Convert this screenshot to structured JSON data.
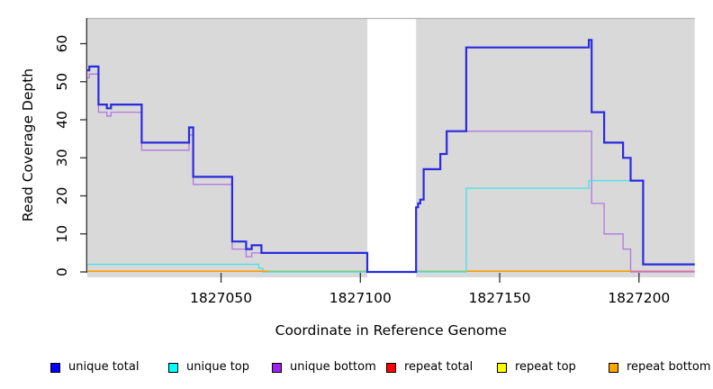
{
  "chart_data": {
    "type": "line",
    "step": true,
    "title": "",
    "xlabel": "Coordinate in Reference Genome",
    "ylabel": "Read Coverage Depth",
    "xlim": [
      1827002,
      1827220
    ],
    "ylim": [
      0,
      66.5
    ],
    "grid": false,
    "plot_background": "#d9d9d9",
    "axis_color": "#303030",
    "x_ticks": [
      1827050,
      1827100,
      1827150,
      1827200
    ],
    "x_tick_labels": [
      "1827050",
      "1827100",
      "1827150",
      "1827200"
    ],
    "y_ticks": [
      0,
      10,
      20,
      30,
      40,
      50,
      60
    ],
    "y_tick_labels": [
      "0",
      "10",
      "20",
      "30",
      "40",
      "50",
      "60"
    ],
    "gap_region": {
      "x_start": 1827102.5,
      "x_end": 1827120,
      "fill": "#ffffff"
    },
    "series": [
      {
        "name": "unique bottom",
        "color": "#b176e2",
        "width": 1.3,
        "points": [
          [
            1827002,
            51
          ],
          [
            1827002.7,
            52
          ],
          [
            1827006,
            42
          ],
          [
            1827009,
            41
          ],
          [
            1827010.5,
            42
          ],
          [
            1827021.5,
            32
          ],
          [
            1827038.5,
            36
          ],
          [
            1827040,
            23
          ],
          [
            1827054,
            6
          ],
          [
            1827059,
            4
          ],
          [
            1827061,
            5
          ],
          [
            1827064.5,
            5
          ],
          [
            1827102.5,
            0
          ],
          [
            1827120,
            17
          ],
          [
            1827120.7,
            18
          ],
          [
            1827121.5,
            19
          ],
          [
            1827122.7,
            27
          ],
          [
            1827128.7,
            31
          ],
          [
            1827131,
            37
          ],
          [
            1827183,
            18
          ],
          [
            1827187.5,
            10
          ],
          [
            1827194.3,
            6
          ],
          [
            1827197,
            0
          ],
          [
            1827220,
            0
          ]
        ]
      },
      {
        "name": "unique top",
        "color": "#4de2e6",
        "width": 1.4,
        "points": [
          [
            1827002,
            2
          ],
          [
            1827063.5,
            1
          ],
          [
            1827065,
            0
          ],
          [
            1827138,
            22
          ],
          [
            1827182,
            24
          ],
          [
            1827201.5,
            2
          ],
          [
            1827220,
            2
          ]
        ]
      },
      {
        "name": "unique total",
        "color": "#2a2ae0",
        "width": 2.2,
        "points": [
          [
            1827002,
            53
          ],
          [
            1827002.7,
            54
          ],
          [
            1827006,
            44
          ],
          [
            1827009,
            43
          ],
          [
            1827010.5,
            44
          ],
          [
            1827021.5,
            34
          ],
          [
            1827038.5,
            38
          ],
          [
            1827040,
            25
          ],
          [
            1827054,
            8
          ],
          [
            1827059,
            6
          ],
          [
            1827061,
            7
          ],
          [
            1827064.5,
            5
          ],
          [
            1827102.5,
            0
          ],
          [
            1827120,
            17
          ],
          [
            1827120.7,
            18
          ],
          [
            1827121.5,
            19
          ],
          [
            1827122.7,
            27
          ],
          [
            1827128.7,
            31
          ],
          [
            1827131,
            37
          ],
          [
            1827138,
            59
          ],
          [
            1827182,
            61
          ],
          [
            1827183,
            42
          ],
          [
            1827187.5,
            34
          ],
          [
            1827194.3,
            30
          ],
          [
            1827197,
            24
          ],
          [
            1827201.5,
            2
          ],
          [
            1827220,
            2
          ]
        ]
      }
    ],
    "baseline_segments": [
      {
        "name": "baseline-orange-left",
        "color": "#ff9d00",
        "width": 1.6,
        "value": 0.2,
        "x_start": 1827002,
        "x_end": 1827067
      },
      {
        "name": "baseline-green-left",
        "color": "#7ccd7c",
        "width": 1.4,
        "value": 0.2,
        "x_start": 1827067,
        "x_end": 1827102.5
      },
      {
        "name": "baseline-green-right",
        "color": "#7ccd7c",
        "width": 1.4,
        "value": 0.2,
        "x_start": 1827120,
        "x_end": 1827138.3
      },
      {
        "name": "baseline-orange-right",
        "color": "#ff9d00",
        "width": 1.6,
        "value": 0.2,
        "x_start": 1827138.3,
        "x_end": 1827197
      },
      {
        "name": "baseline-pink-right",
        "color": "#d9709a",
        "width": 1.4,
        "value": 0.2,
        "x_start": 1827197,
        "x_end": 1827220
      }
    ],
    "legend": {
      "position": "bottom",
      "items": [
        {
          "label": "unique total",
          "color": "#0000ff"
        },
        {
          "label": "unique top",
          "color": "#00ffff"
        },
        {
          "label": "unique bottom",
          "color": "#a020f0"
        },
        {
          "label": "repeat total",
          "color": "#ff0000"
        },
        {
          "label": "repeat top",
          "color": "#ffff00"
        },
        {
          "label": "repeat bottom",
          "color": "#ffa500"
        }
      ]
    }
  }
}
